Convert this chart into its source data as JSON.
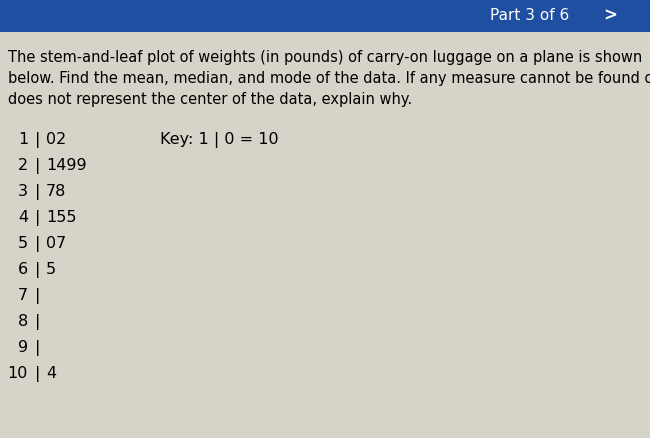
{
  "title_text": "The stem-and-leaf plot of weights (in pounds) of carry-on luggage on a plane is shown\nbelow. Find the mean, median, and mode of the data. If any measure cannot be found or\ndoes not represent the center of the data, explain why.",
  "header_text": "Part 3 of 6",
  "key_text": "Key: 1 | 0 = 10",
  "stems": [
    "1",
    "2",
    "3",
    "4",
    "5",
    "6",
    "7",
    "8",
    "9",
    "10"
  ],
  "leaves": [
    "02",
    "1499",
    "78",
    "155",
    "07",
    "5",
    "",
    "",
    "",
    "4"
  ],
  "bg_color": "#d6d3c8",
  "header_bg": "#1e4fa0",
  "header_text_color": "#ffffff",
  "font_size_title": 10.5,
  "font_size_stem": 11.5,
  "font_size_key": 11.5,
  "header_fontsize": 11
}
